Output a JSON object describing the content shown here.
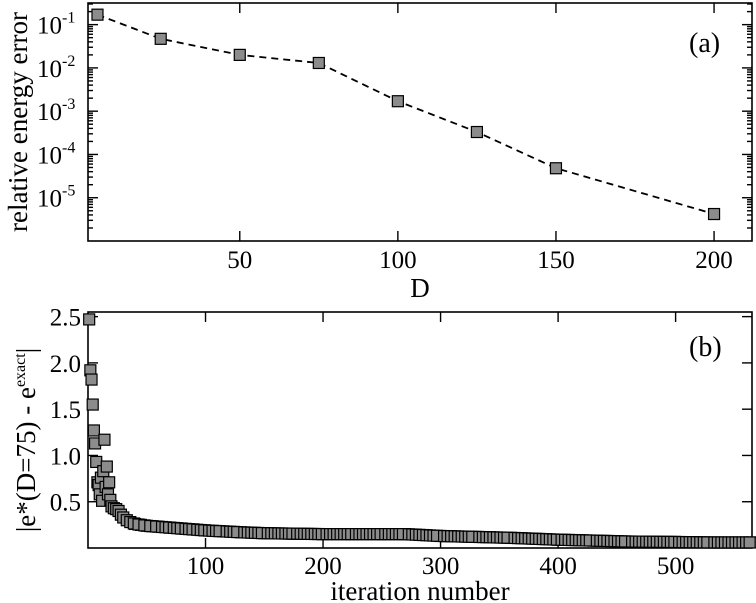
{
  "chart_data": [
    {
      "type": "line",
      "panel_label": "(a)",
      "xlabel": "D",
      "ylabel": "relative energy error",
      "xlim": [
        2,
        212
      ],
      "ylim_log10": [
        -6,
        -0.5
      ],
      "yscale": "log",
      "x_ticks": [
        50,
        100,
        150,
        200
      ],
      "y_ticks": [
        {
          "base": "10",
          "exp": "-1",
          "value": 0.1
        },
        {
          "base": "10",
          "exp": "-2",
          "value": 0.01
        },
        {
          "base": "10",
          "exp": "-3",
          "value": 0.001
        },
        {
          "base": "10",
          "exp": "-4",
          "value": 0.0001
        },
        {
          "base": "10",
          "exp": "-5",
          "value": 1e-05
        }
      ],
      "line_style": "dashed",
      "marker": "square",
      "x": [
        5,
        25,
        50,
        75,
        100,
        125,
        150,
        200
      ],
      "y": [
        0.17,
        0.047,
        0.02,
        0.013,
        0.0017,
        0.00033,
        4.8e-05,
        4.2e-06
      ]
    },
    {
      "type": "scatter",
      "panel_label": "(b)",
      "xlabel": "iteration number",
      "ylabel": "|e*(D=75) - e",
      "ylabel_superscript": "exact",
      "ylabel_close": "|",
      "xlim": [
        0,
        565
      ],
      "ylim": [
        0,
        2.55
      ],
      "x_ticks": [
        100,
        200,
        300,
        400,
        500
      ],
      "y_ticks": [
        "0.5",
        "1.0",
        "1.5",
        "2.0",
        "2.5"
      ],
      "marker": "square",
      "x": [
        1,
        2,
        3,
        4,
        5,
        6,
        7,
        8,
        9,
        10,
        11,
        12,
        13,
        14,
        15,
        16,
        17,
        18,
        19,
        20,
        22,
        24,
        26,
        28,
        30,
        33,
        36,
        40,
        45,
        50,
        55,
        60,
        70,
        80,
        90,
        100,
        115,
        130,
        150,
        175,
        200,
        225,
        250,
        270,
        300,
        330,
        360,
        400,
        430,
        460,
        500,
        530,
        565
      ],
      "y": [
        2.47,
        1.92,
        1.82,
        1.55,
        1.27,
        1.13,
        0.93,
        0.71,
        0.68,
        0.58,
        0.76,
        0.51,
        0.83,
        1.17,
        0.66,
        0.88,
        0.58,
        0.71,
        0.52,
        0.45,
        0.43,
        0.42,
        0.4,
        0.36,
        0.33,
        0.3,
        0.28,
        0.26,
        0.25,
        0.24,
        0.235,
        0.23,
        0.22,
        0.21,
        0.2,
        0.19,
        0.18,
        0.17,
        0.16,
        0.155,
        0.15,
        0.15,
        0.15,
        0.15,
        0.13,
        0.12,
        0.11,
        0.09,
        0.08,
        0.07,
        0.065,
        0.06,
        0.06
      ]
    }
  ]
}
